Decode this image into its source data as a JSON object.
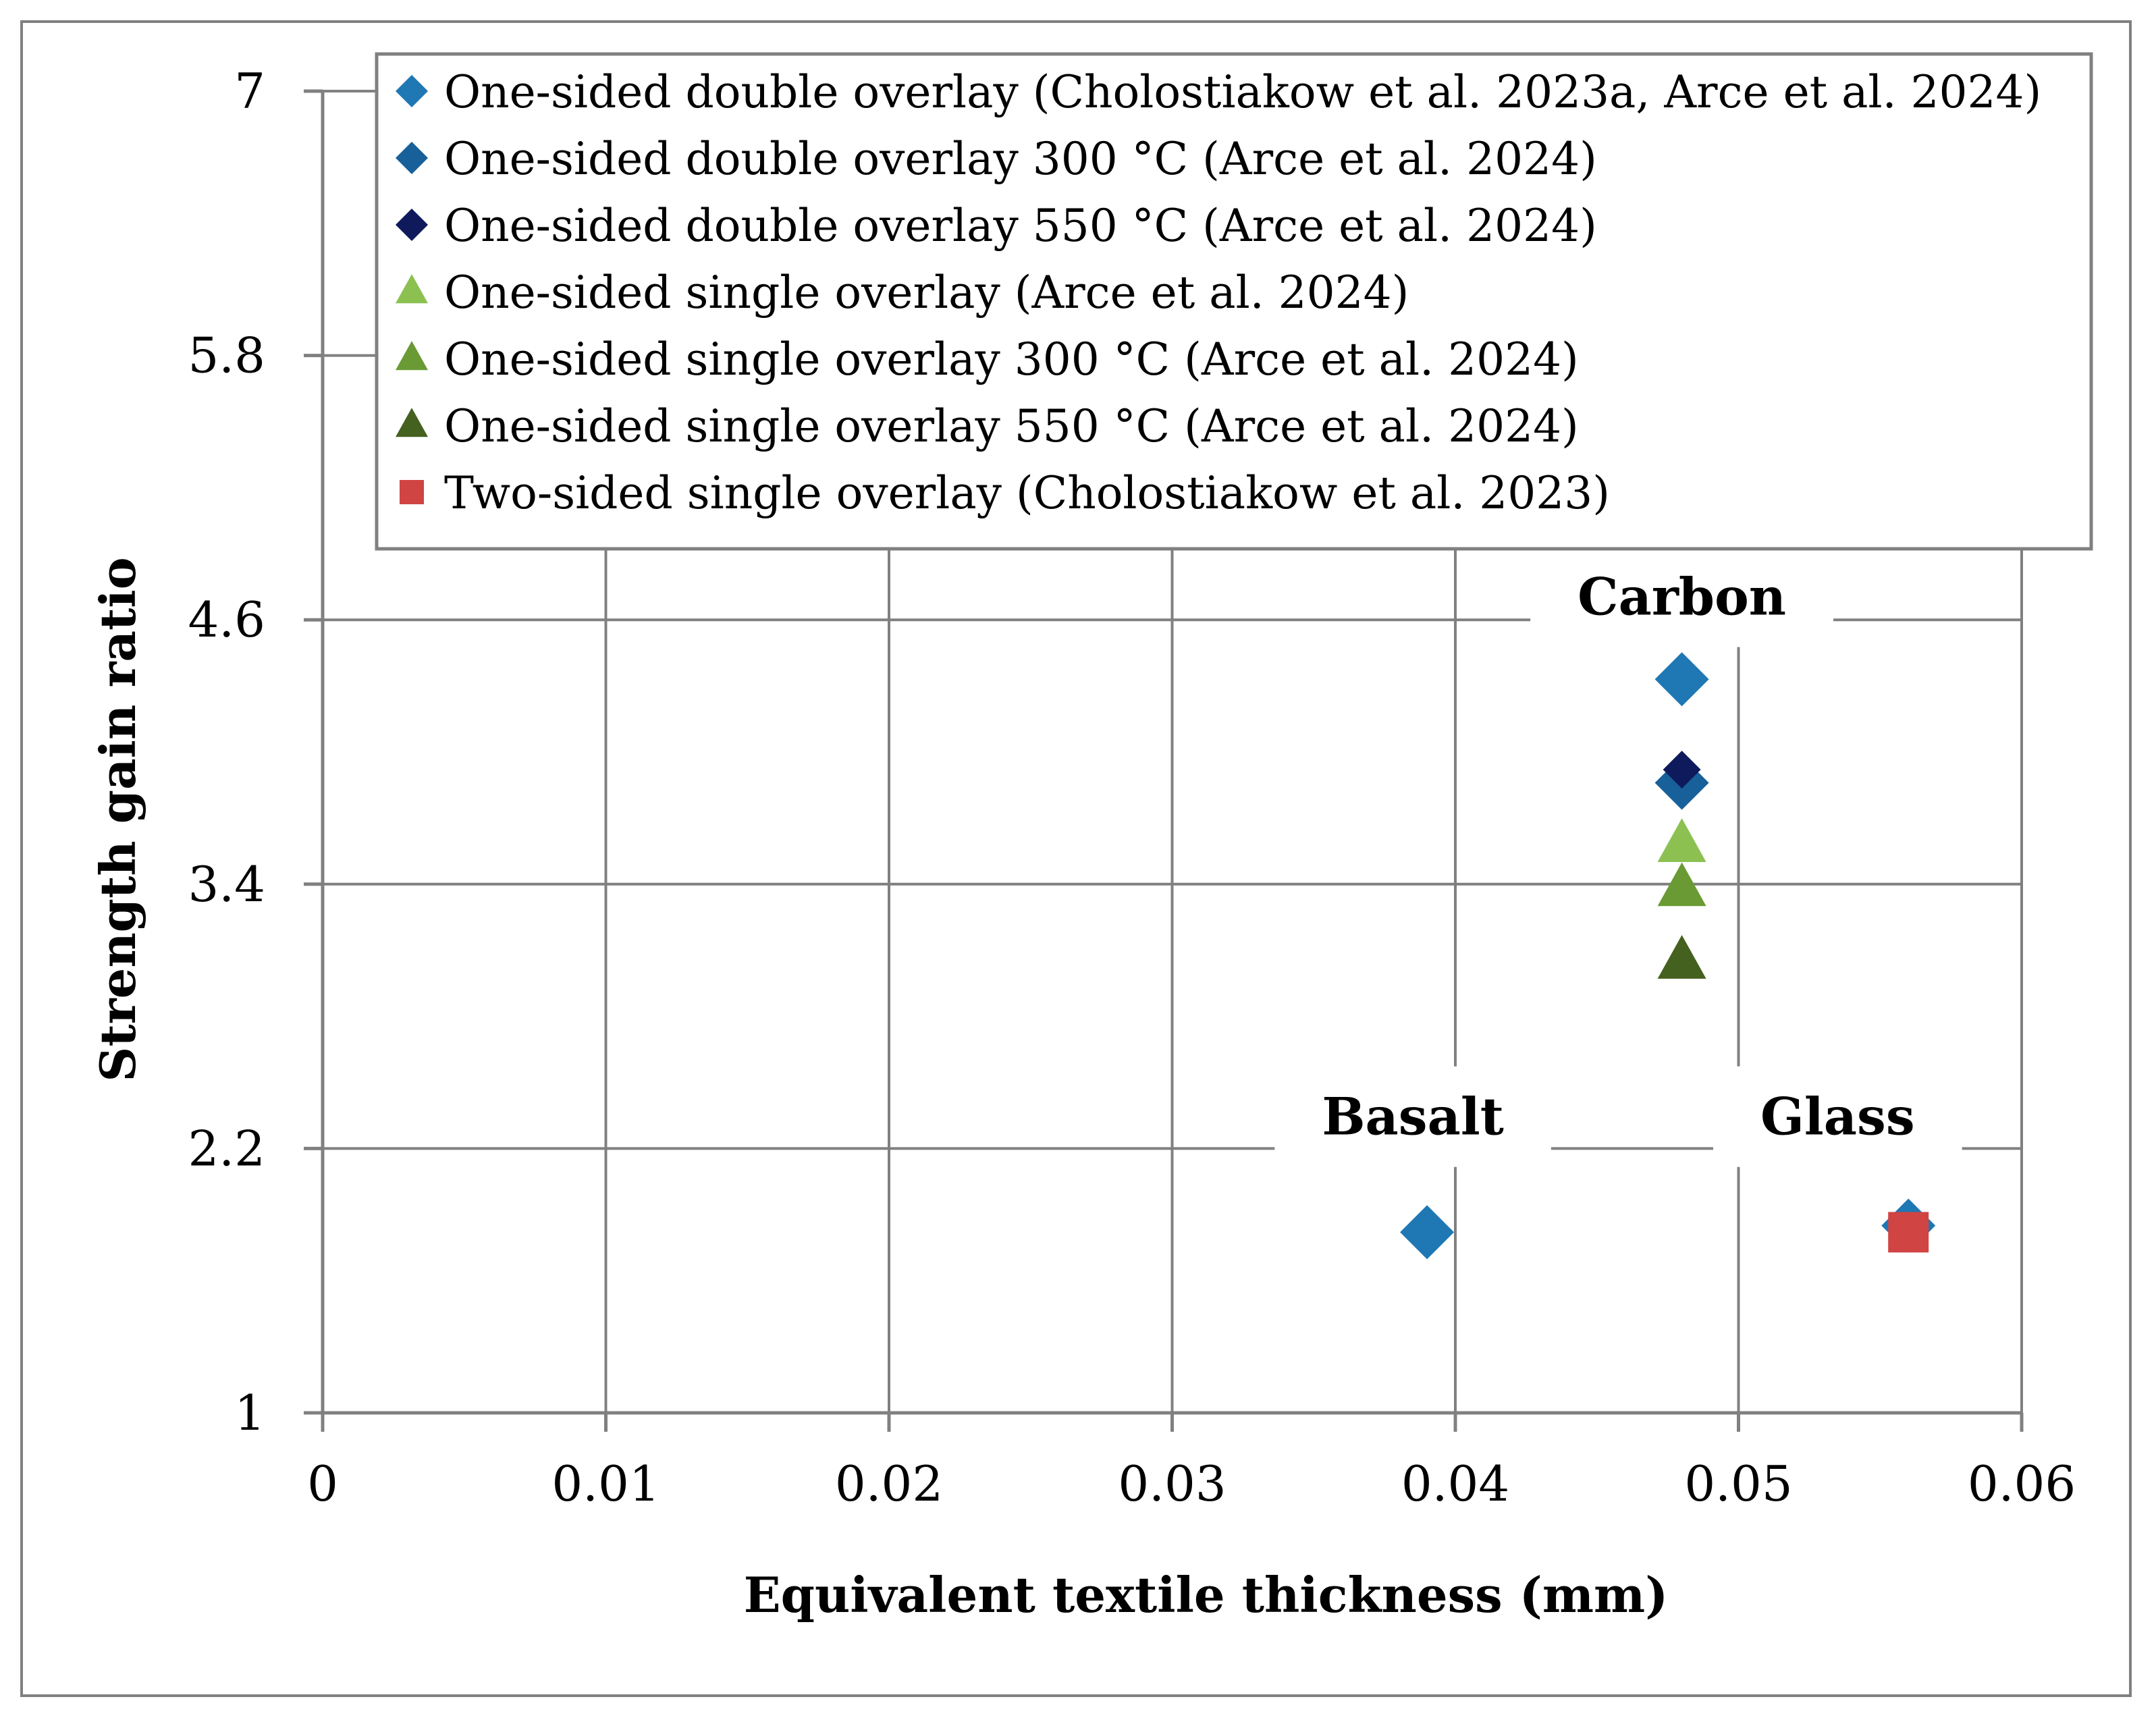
{
  "chart_data": {
    "type": "scatter",
    "title": "",
    "xlabel": "Equivalent textile thickness (mm)",
    "ylabel": "Strength gain ratio",
    "xlim": [
      0,
      0.06
    ],
    "ylim": [
      1,
      7
    ],
    "x_ticks": [
      "0",
      "0.01",
      "0.02",
      "0.03",
      "0.04",
      "0.05",
      "0.06"
    ],
    "x_tick_values": [
      0,
      0.01,
      0.02,
      0.03,
      0.04,
      0.05,
      0.06
    ],
    "y_ticks": [
      "1",
      "2.2",
      "3.4",
      "4.6",
      "5.8",
      "7"
    ],
    "y_tick_values": [
      1,
      2.2,
      3.4,
      4.6,
      5.8,
      7
    ],
    "grid": true,
    "legend_position": "top-right",
    "series": [
      {
        "name": "One-sided double overlay (Cholostiakow et al. 2023a, Arce et al. 2024)",
        "marker": "diamond",
        "color": "#1F77B4",
        "points": [
          {
            "x": 0.039,
            "y": 1.82
          },
          {
            "x": 0.048,
            "y": 4.33
          },
          {
            "x": 0.056,
            "y": 1.85
          }
        ]
      },
      {
        "name": "One-sided double overlay 300 °C (Arce et al. 2024)",
        "marker": "diamond",
        "color": "#17609A",
        "points": [
          {
            "x": 0.048,
            "y": 3.86
          }
        ]
      },
      {
        "name": "One-sided double overlay 550 °C (Arce et al. 2024)",
        "marker": "diamond",
        "color": "#0E1A5C",
        "points": [
          {
            "x": 0.048,
            "y": 3.92
          }
        ]
      },
      {
        "name": "One-sided single overlay (Arce et al. 2024)",
        "marker": "triangle",
        "color": "#8CC152",
        "points": [
          {
            "x": 0.048,
            "y": 3.58
          }
        ]
      },
      {
        "name": "One-sided single overlay 300 °C (Arce et al. 2024)",
        "marker": "triangle",
        "color": "#6A9A34",
        "points": [
          {
            "x": 0.048,
            "y": 3.38
          }
        ]
      },
      {
        "name": "One-sided single overlay 550 °C (Arce et al. 2024)",
        "marker": "triangle",
        "color": "#44611F",
        "points": [
          {
            "x": 0.048,
            "y": 3.05
          }
        ]
      },
      {
        "name": "Two-sided single overlay (Cholostiakow et al. 2023)",
        "marker": "square",
        "color": "#D04444",
        "points": [
          {
            "x": 0.056,
            "y": 1.82
          }
        ]
      }
    ],
    "annotations": [
      {
        "text": "Carbon",
        "x": 0.048,
        "y": 4.7
      },
      {
        "text": "Basalt",
        "x": 0.0385,
        "y": 2.34
      },
      {
        "text": "Glass",
        "x": 0.0535,
        "y": 2.34
      }
    ]
  },
  "colors": {
    "grid": "#808080",
    "frame": "#808080"
  }
}
